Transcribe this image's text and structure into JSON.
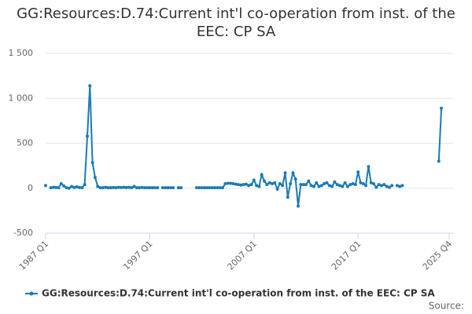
{
  "chart_data": {
    "type": "line",
    "title": "GG:Resources:D.74:Current int'l co-operation from inst. of the EEC: CP SA",
    "source": "Source:",
    "categories": [
      "1987 Q1",
      null,
      null,
      null,
      null,
      null,
      null,
      null,
      null,
      null,
      null,
      null,
      null,
      null,
      null,
      null,
      null,
      null,
      null,
      null,
      null,
      null,
      null,
      null,
      null,
      null,
      null,
      null,
      null,
      null,
      null,
      null,
      null,
      null,
      null,
      null,
      null,
      null,
      null,
      null,
      "1997 Q1",
      null,
      null,
      null,
      null,
      null,
      null,
      null,
      null,
      null,
      null,
      null,
      null,
      null,
      null,
      null,
      null,
      null,
      null,
      null,
      null,
      null,
      null,
      null,
      null,
      null,
      null,
      null,
      null,
      null,
      null,
      null,
      null,
      null,
      null,
      null,
      null,
      null,
      null,
      null,
      "2007 Q1",
      null,
      null,
      null,
      null,
      null,
      null,
      null,
      null,
      null,
      null,
      null,
      null,
      null,
      null,
      null,
      null,
      null,
      null,
      null,
      null,
      null,
      null,
      null,
      null,
      null,
      null,
      null,
      null,
      null,
      null,
      null,
      null,
      null,
      null,
      null,
      null,
      null,
      null,
      null,
      "2017 Q1",
      null,
      null,
      null,
      null,
      null,
      null,
      null,
      null,
      null,
      null,
      null,
      null,
      null,
      null,
      null,
      null,
      null,
      null,
      null,
      null,
      null,
      null,
      null,
      null,
      null,
      null,
      null,
      null,
      null,
      null,
      null,
      null,
      null,
      null,
      "2025 Q4"
    ],
    "series": [
      {
        "name": "GG:Resources:D.74:Current int'l co-operation from inst. of the EEC: CP SA",
        "color": "#1a7ab5",
        "values": [
          30,
          null,
          5,
          10,
          8,
          5,
          50,
          25,
          5,
          0,
          20,
          8,
          15,
          8,
          5,
          40,
          580,
          1140,
          285,
          120,
          20,
          5,
          5,
          10,
          5,
          5,
          8,
          5,
          10,
          8,
          10,
          8,
          10,
          5,
          20,
          5,
          5,
          8,
          5,
          5,
          5,
          5,
          5,
          5,
          null,
          5,
          5,
          5,
          5,
          5,
          null,
          5,
          5,
          null,
          null,
          null,
          null,
          null,
          5,
          5,
          5,
          5,
          5,
          5,
          5,
          5,
          5,
          5,
          5,
          50,
          55,
          55,
          50,
          45,
          40,
          35,
          40,
          45,
          30,
          40,
          90,
          30,
          20,
          150,
          80,
          40,
          60,
          50,
          60,
          -10,
          50,
          30,
          170,
          -100,
          50,
          170,
          100,
          -200,
          40,
          40,
          40,
          80,
          30,
          20,
          60,
          20,
          30,
          50,
          60,
          30,
          20,
          70,
          40,
          30,
          20,
          60,
          20,
          40,
          50,
          40,
          180,
          60,
          50,
          30,
          240,
          60,
          50,
          10,
          40,
          30,
          40,
          20,
          10,
          30,
          null,
          30,
          20,
          30,
          null,
          null,
          null,
          null,
          null,
          null,
          null,
          null,
          null,
          null,
          null,
          null,
          null,
          300,
          890,
          null,
          null,
          null
        ]
      }
    ],
    "ylim": [
      -500,
      1500
    ],
    "yticks": [
      {
        "value": 1500,
        "label": "1 500"
      },
      {
        "value": 1000,
        "label": "1 000"
      },
      500,
      0,
      -500
    ],
    "grid": true
  }
}
